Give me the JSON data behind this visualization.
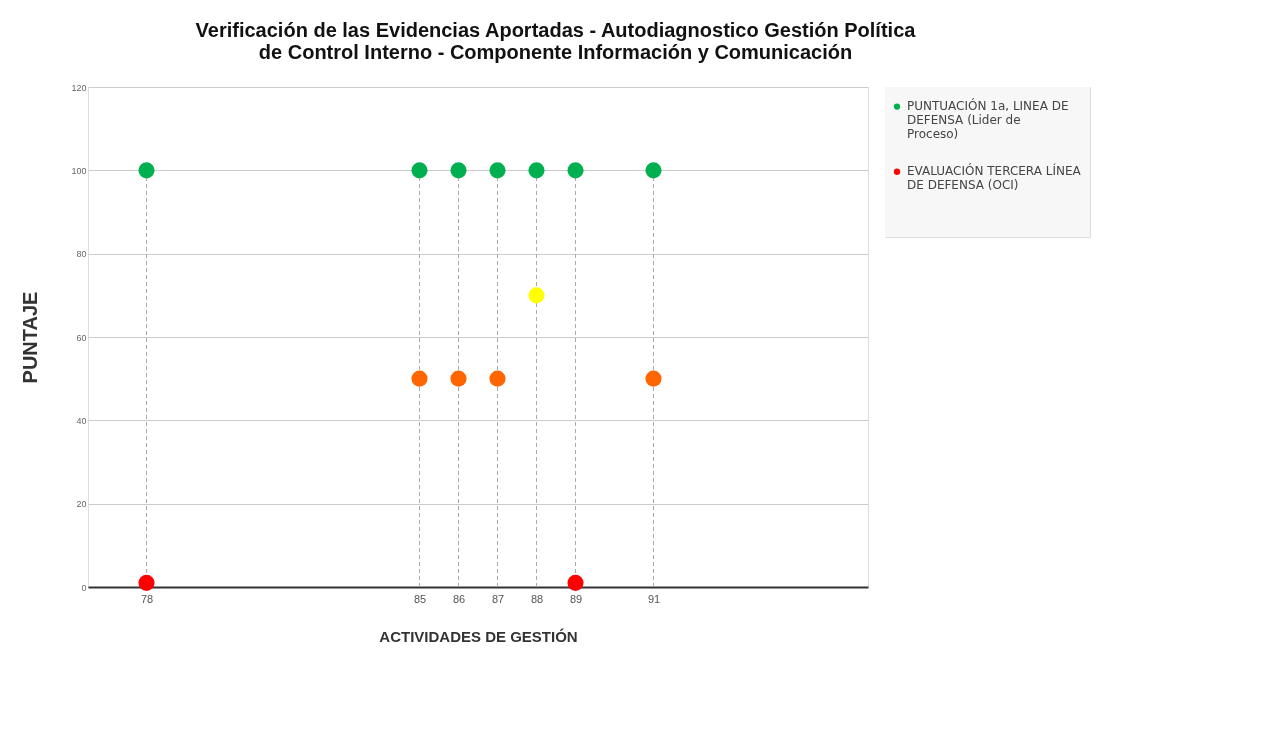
{
  "chart_data": {
    "type": "scatter",
    "title": "Verificación de las Evidencias Aportadas - Autodiagnostico Gestión Política de Control Interno - Componente Información y Comunicación",
    "xlabel": "ACTIVIDADES DE GESTIÓN",
    "ylabel": "PUNTAJE",
    "x": [
      78,
      85,
      86,
      87,
      88,
      89,
      91
    ],
    "series": [
      {
        "name": "PUNTUACIÓN 1a, LINEA DE DEFENSA (Lider de Proceso)",
        "color": "#00b050",
        "values": [
          100,
          100,
          100,
          100,
          100,
          100,
          100
        ]
      },
      {
        "name": "EVALUACIÓN TERCERA LÍNEA DE DEFENSA (OCI)",
        "color": "#ff0000",
        "colors": [
          "#ff0000",
          "#ff6600",
          "#ff6600",
          "#ff6600",
          "#ffff00",
          "#ff0000",
          "#ff6600"
        ],
        "values": [
          1,
          50,
          50,
          50,
          70,
          1,
          50
        ]
      }
    ],
    "ref_lines": [
      {
        "axis": "x",
        "value": 78,
        "color": "#aaaaaa",
        "line_style": "dashed"
      },
      {
        "axis": "x",
        "value": 85,
        "color": "#aaaaaa",
        "line_style": "dashed"
      },
      {
        "axis": "x",
        "value": 86,
        "color": "#aaaaaa",
        "line_style": "dashed"
      },
      {
        "axis": "x",
        "value": 87,
        "color": "#aaaaaa",
        "line_style": "dashed"
      },
      {
        "axis": "x",
        "value": 88,
        "color": "#aaaaaa",
        "line_style": "dashed"
      },
      {
        "axis": "x",
        "value": 89,
        "color": "#aaaaaa",
        "line_style": "dashed"
      },
      {
        "axis": "x",
        "value": 91,
        "color": "#aaaaaa",
        "line_style": "dashed"
      }
    ],
    "xlim": [
      76.5,
      96.5
    ],
    "xticks": [
      78,
      85,
      86,
      87,
      88,
      89,
      91
    ],
    "ylim": [
      0,
      120
    ],
    "yticks": [
      0,
      20,
      40,
      60,
      80,
      100,
      120
    ],
    "grid": "y",
    "legend": "right",
    "marker": "circle"
  }
}
